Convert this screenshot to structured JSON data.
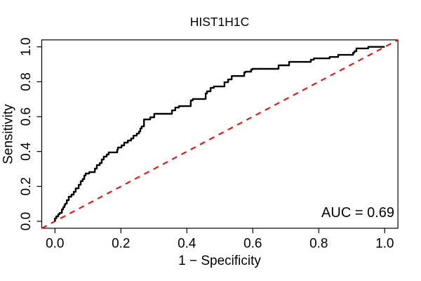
{
  "figure": {
    "title": "HIST1H1C",
    "xlabel": "1 − Specificity",
    "ylabel": "Sensitivity",
    "auc_label": "AUC = 0.69"
  },
  "chart_data": {
    "type": "line",
    "title": "HIST1H1C",
    "xlabel": "1 − Specificity",
    "ylabel": "Sensitivity",
    "xlim": [
      0,
      1
    ],
    "ylim": [
      0,
      1
    ],
    "grid": false,
    "legend": null,
    "auc": 0.69,
    "annotation": {
      "text": "AUC = 0.69",
      "x": 0.97,
      "y": 0.05,
      "align": "right"
    },
    "x_ticks": {
      "values": [
        0.0,
        0.2,
        0.4,
        0.6,
        0.8,
        1.0
      ],
      "labels": [
        "0.0",
        "0.2",
        "0.4",
        "0.6",
        "0.8",
        "1.0"
      ]
    },
    "y_ticks": {
      "values": [
        0.0,
        0.2,
        0.4,
        0.6,
        0.8,
        1.0
      ],
      "labels": [
        "0.0",
        "0.2",
        "0.4",
        "0.6",
        "0.8",
        "1.0"
      ]
    },
    "colors": {
      "roc_curve": "#000000",
      "reference_line": "#FF0000",
      "frame": "#000000",
      "background": "#FFFFFF"
    },
    "series": [
      {
        "name": "ROC curve",
        "style": "step",
        "color": "#000000",
        "width": 2,
        "dash": "solid",
        "points": [
          [
            0.0,
            0.0
          ],
          [
            0.004,
            0.016
          ],
          [
            0.01,
            0.028
          ],
          [
            0.014,
            0.04
          ],
          [
            0.021,
            0.048
          ],
          [
            0.025,
            0.068
          ],
          [
            0.029,
            0.081
          ],
          [
            0.031,
            0.093
          ],
          [
            0.036,
            0.101
          ],
          [
            0.042,
            0.121
          ],
          [
            0.05,
            0.141
          ],
          [
            0.057,
            0.153
          ],
          [
            0.063,
            0.169
          ],
          [
            0.072,
            0.189
          ],
          [
            0.078,
            0.209
          ],
          [
            0.084,
            0.23
          ],
          [
            0.089,
            0.242
          ],
          [
            0.093,
            0.262
          ],
          [
            0.104,
            0.274
          ],
          [
            0.121,
            0.282
          ],
          [
            0.127,
            0.302
          ],
          [
            0.136,
            0.322
          ],
          [
            0.142,
            0.334
          ],
          [
            0.148,
            0.354
          ],
          [
            0.157,
            0.371
          ],
          [
            0.163,
            0.383
          ],
          [
            0.189,
            0.395
          ],
          [
            0.191,
            0.411
          ],
          [
            0.202,
            0.423
          ],
          [
            0.21,
            0.435
          ],
          [
            0.221,
            0.451
          ],
          [
            0.231,
            0.463
          ],
          [
            0.238,
            0.475
          ],
          [
            0.248,
            0.491
          ],
          [
            0.255,
            0.503
          ],
          [
            0.259,
            0.515
          ],
          [
            0.263,
            0.532
          ],
          [
            0.27,
            0.544
          ],
          [
            0.289,
            0.584
          ],
          [
            0.301,
            0.596
          ],
          [
            0.355,
            0.616
          ],
          [
            0.365,
            0.636
          ],
          [
            0.376,
            0.652
          ],
          [
            0.412,
            0.66
          ],
          [
            0.418,
            0.693
          ],
          [
            0.457,
            0.701
          ],
          [
            0.461,
            0.733
          ],
          [
            0.472,
            0.745
          ],
          [
            0.482,
            0.765
          ],
          [
            0.514,
            0.773
          ],
          [
            0.525,
            0.797
          ],
          [
            0.536,
            0.813
          ],
          [
            0.574,
            0.833
          ],
          [
            0.578,
            0.854
          ],
          [
            0.595,
            0.858
          ],
          [
            0.599,
            0.87
          ],
          [
            0.678,
            0.874
          ],
          [
            0.71,
            0.894
          ],
          [
            0.776,
            0.914
          ],
          [
            0.785,
            0.926
          ],
          [
            0.833,
            0.934
          ],
          [
            0.859,
            0.942
          ],
          [
            0.904,
            0.954
          ],
          [
            0.908,
            0.966
          ],
          [
            0.914,
            0.975
          ],
          [
            0.95,
            0.991
          ],
          [
            0.961,
            1.0
          ],
          [
            1.0,
            1.0
          ]
        ]
      },
      {
        "name": "chance reference line",
        "style": "line",
        "color": "#FF0000",
        "width": 2,
        "dash": "dashed",
        "points": [
          [
            0,
            0
          ],
          [
            1,
            1
          ]
        ],
        "note": "drawn corner-to-corner across the plot frame"
      }
    ]
  }
}
